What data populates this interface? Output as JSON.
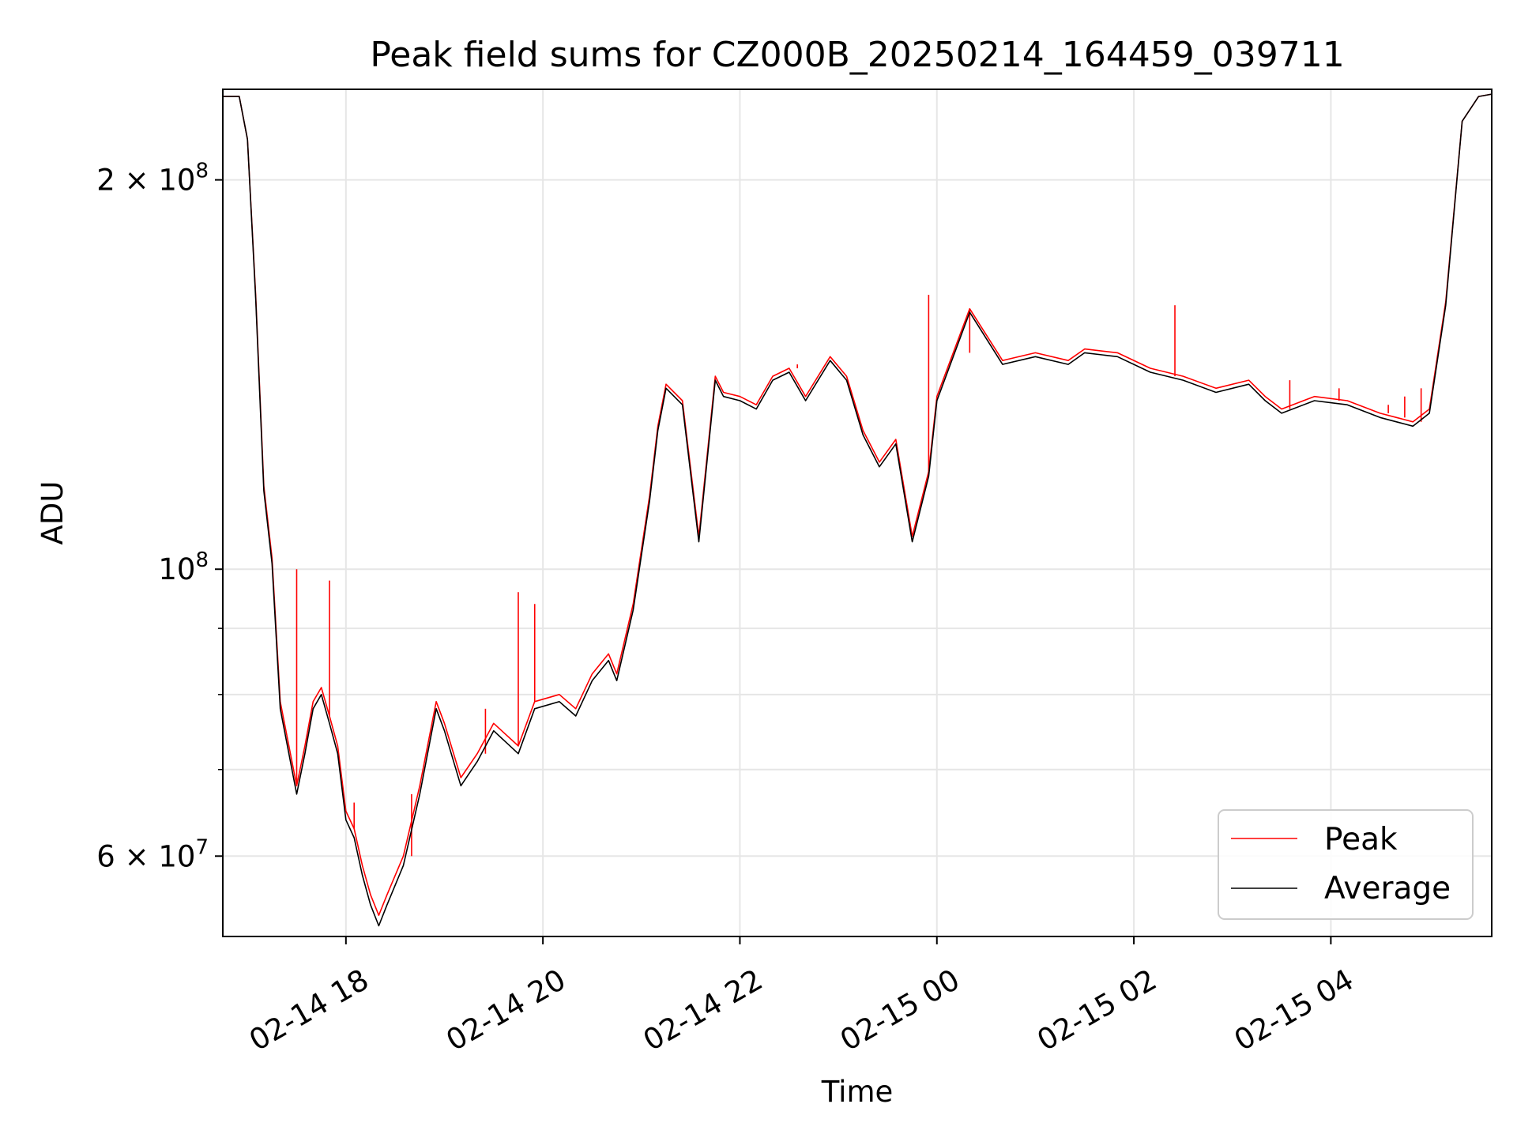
{
  "chart_data": {
    "type": "line",
    "title": "Peak field sums for CZ000B_20250214_164459_039711",
    "xlabel": "Time",
    "ylabel": "ADU",
    "y_scale": "log",
    "ylim": [
      52000000,
      235000000
    ],
    "xlim": [
      "2025-02-14 16:45",
      "2025-02-15 05:38"
    ],
    "grid": true,
    "legend_position": "lower-right",
    "x_ticks": [
      {
        "value": "2025-02-14 18:00",
        "label": "02-14 18"
      },
      {
        "value": "2025-02-14 20:00",
        "label": "02-14 20"
      },
      {
        "value": "2025-02-14 22:00",
        "label": "02-14 22"
      },
      {
        "value": "2025-02-15 00:00",
        "label": "02-15 00"
      },
      {
        "value": "2025-02-15 02:00",
        "label": "02-15 02"
      },
      {
        "value": "2025-02-15 04:00",
        "label": "02-15 04"
      }
    ],
    "y_ticks_labeled": [
      {
        "value": 60000000,
        "base": "6",
        "exp": "7"
      },
      {
        "value": 100000000,
        "base": "",
        "exp": "8"
      },
      {
        "value": 200000000,
        "base": "2",
        "exp": "8"
      }
    ],
    "y_ticks_minor": [
      70000000,
      80000000,
      90000000
    ],
    "colors": {
      "Peak": "#ff0000",
      "Average": "#000000"
    },
    "series": [
      {
        "name": "Average",
        "x": [
          "2025-02-14 16:45",
          "2025-02-14 16:55",
          "2025-02-14 17:00",
          "2025-02-14 17:05",
          "2025-02-14 17:10",
          "2025-02-14 17:15",
          "2025-02-14 17:20",
          "2025-02-14 17:30",
          "2025-02-14 17:35",
          "2025-02-14 17:40",
          "2025-02-14 17:45",
          "2025-02-14 17:50",
          "2025-02-14 17:55",
          "2025-02-14 18:00",
          "2025-02-14 18:05",
          "2025-02-14 18:10",
          "2025-02-14 18:15",
          "2025-02-14 18:20",
          "2025-02-14 18:25",
          "2025-02-14 18:35",
          "2025-02-14 18:45",
          "2025-02-14 18:55",
          "2025-02-14 19:00",
          "2025-02-14 19:10",
          "2025-02-14 19:20",
          "2025-02-14 19:30",
          "2025-02-14 19:45",
          "2025-02-14 19:55",
          "2025-02-14 20:10",
          "2025-02-14 20:20",
          "2025-02-14 20:30",
          "2025-02-14 20:40",
          "2025-02-14 20:45",
          "2025-02-14 20:55",
          "2025-02-14 21:05",
          "2025-02-14 21:10",
          "2025-02-14 21:15",
          "2025-02-14 21:25",
          "2025-02-14 21:35",
          "2025-02-14 21:45",
          "2025-02-14 21:50",
          "2025-02-14 22:00",
          "2025-02-14 22:10",
          "2025-02-14 22:20",
          "2025-02-14 22:30",
          "2025-02-14 22:40",
          "2025-02-14 22:55",
          "2025-02-14 23:05",
          "2025-02-14 23:15",
          "2025-02-14 23:25",
          "2025-02-14 23:35",
          "2025-02-14 23:45",
          "2025-02-14 23:55",
          "2025-02-15 00:00",
          "2025-02-15 00:20",
          "2025-02-15 00:40",
          "2025-02-15 01:00",
          "2025-02-15 01:20",
          "2025-02-15 01:30",
          "2025-02-15 01:50",
          "2025-02-15 02:10",
          "2025-02-15 02:30",
          "2025-02-15 02:50",
          "2025-02-15 03:10",
          "2025-02-15 03:20",
          "2025-02-15 03:30",
          "2025-02-15 03:50",
          "2025-02-15 04:10",
          "2025-02-15 04:30",
          "2025-02-15 04:40",
          "2025-02-15 04:50",
          "2025-02-15 05:00",
          "2025-02-15 05:10",
          "2025-02-15 05:20",
          "2025-02-15 05:30",
          "2025-02-15 05:38"
        ],
        "y": [
          232000000,
          232000000,
          215000000,
          162000000,
          115000000,
          101000000,
          78000000,
          67000000,
          72000000,
          78000000,
          80000000,
          76000000,
          72000000,
          64000000,
          62000000,
          58000000,
          55000000,
          53000000,
          55000000,
          59000000,
          67000000,
          78000000,
          75000000,
          68000000,
          71000000,
          75000000,
          72000000,
          78000000,
          79000000,
          77000000,
          82000000,
          85000000,
          82000000,
          93000000,
          113000000,
          128000000,
          138000000,
          134000000,
          105000000,
          140000000,
          136000000,
          135000000,
          133000000,
          140000000,
          142000000,
          135000000,
          145000000,
          140000000,
          127000000,
          120000000,
          125000000,
          105000000,
          118000000,
          135000000,
          158000000,
          144000000,
          146000000,
          144000000,
          147000000,
          146000000,
          142000000,
          140000000,
          137000000,
          139000000,
          135000000,
          132000000,
          135000000,
          134000000,
          131000000,
          130000000,
          129000000,
          132000000,
          160000000,
          222000000,
          232000000,
          233000000
        ]
      },
      {
        "name": "Peak",
        "x": [
          "2025-02-14 16:45",
          "2025-02-14 16:55",
          "2025-02-14 17:00",
          "2025-02-14 17:05",
          "2025-02-14 17:10",
          "2025-02-14 17:15",
          "2025-02-14 17:20",
          "2025-02-14 17:30",
          "2025-02-14 17:35",
          "2025-02-14 17:40",
          "2025-02-14 17:45",
          "2025-02-14 17:50",
          "2025-02-14 17:55",
          "2025-02-14 18:00",
          "2025-02-14 18:05",
          "2025-02-14 18:10",
          "2025-02-14 18:15",
          "2025-02-14 18:20",
          "2025-02-14 18:25",
          "2025-02-14 18:35",
          "2025-02-14 18:45",
          "2025-02-14 18:55",
          "2025-02-14 19:00",
          "2025-02-14 19:10",
          "2025-02-14 19:20",
          "2025-02-14 19:30",
          "2025-02-14 19:45",
          "2025-02-14 19:55",
          "2025-02-14 20:10",
          "2025-02-14 20:20",
          "2025-02-14 20:30",
          "2025-02-14 20:40",
          "2025-02-14 20:45",
          "2025-02-14 20:55",
          "2025-02-14 21:05",
          "2025-02-14 21:10",
          "2025-02-14 21:15",
          "2025-02-14 21:25",
          "2025-02-14 21:35",
          "2025-02-14 21:45",
          "2025-02-14 21:50",
          "2025-02-14 22:00",
          "2025-02-14 22:10",
          "2025-02-14 22:20",
          "2025-02-14 22:30",
          "2025-02-14 22:40",
          "2025-02-14 22:55",
          "2025-02-14 23:05",
          "2025-02-14 23:15",
          "2025-02-14 23:25",
          "2025-02-14 23:35",
          "2025-02-14 23:45",
          "2025-02-14 23:55",
          "2025-02-15 00:00",
          "2025-02-15 00:20",
          "2025-02-15 00:40",
          "2025-02-15 01:00",
          "2025-02-15 01:20",
          "2025-02-15 01:30",
          "2025-02-15 01:50",
          "2025-02-15 02:10",
          "2025-02-15 02:30",
          "2025-02-15 02:50",
          "2025-02-15 03:10",
          "2025-02-15 03:20",
          "2025-02-15 03:30",
          "2025-02-15 03:50",
          "2025-02-15 04:10",
          "2025-02-15 04:30",
          "2025-02-15 04:40",
          "2025-02-15 04:50",
          "2025-02-15 05:00",
          "2025-02-15 05:10",
          "2025-02-15 05:20",
          "2025-02-15 05:30",
          "2025-02-15 05:38"
        ],
        "y": [
          232000000,
          232000000,
          215000000,
          163000000,
          116000000,
          102000000,
          79000000,
          68000000,
          73000000,
          79000000,
          81000000,
          77000000,
          73000000,
          65000000,
          63000000,
          59000000,
          56000000,
          54000000,
          56000000,
          60000000,
          68000000,
          79000000,
          76000000,
          69000000,
          72000000,
          76000000,
          73000000,
          79000000,
          80000000,
          78000000,
          83000000,
          86000000,
          83000000,
          94000000,
          114000000,
          129000000,
          139000000,
          135000000,
          106000000,
          141000000,
          137000000,
          136000000,
          134000000,
          141000000,
          143000000,
          136000000,
          146000000,
          141000000,
          128000000,
          121000000,
          126000000,
          106000000,
          119000000,
          136000000,
          159000000,
          145000000,
          147000000,
          145000000,
          148000000,
          147000000,
          143000000,
          141000000,
          138000000,
          140000000,
          136000000,
          133000000,
          136000000,
          135000000,
          132000000,
          131000000,
          130000000,
          133000000,
          161000000,
          222000000,
          232000000,
          233000000
        ],
        "spikes": [
          {
            "x": "2025-02-14 17:30",
            "y": 100000000
          },
          {
            "x": "2025-02-14 17:50",
            "y": 98000000
          },
          {
            "x": "2025-02-14 18:05",
            "y": 66000000
          },
          {
            "x": "2025-02-14 18:40",
            "y": 67000000
          },
          {
            "x": "2025-02-14 19:25",
            "y": 78000000
          },
          {
            "x": "2025-02-14 19:45",
            "y": 96000000
          },
          {
            "x": "2025-02-14 19:55",
            "y": 94000000
          },
          {
            "x": "2025-02-14 22:35",
            "y": 144000000
          },
          {
            "x": "2025-02-14 23:55",
            "y": 163000000
          },
          {
            "x": "2025-02-15 00:20",
            "y": 147000000
          },
          {
            "x": "2025-02-15 02:25",
            "y": 160000000
          },
          {
            "x": "2025-02-15 03:35",
            "y": 140000000
          },
          {
            "x": "2025-02-15 04:05",
            "y": 138000000
          },
          {
            "x": "2025-02-15 04:35",
            "y": 134000000
          },
          {
            "x": "2025-02-15 04:45",
            "y": 136000000
          },
          {
            "x": "2025-02-15 04:55",
            "y": 138000000
          }
        ]
      }
    ]
  }
}
